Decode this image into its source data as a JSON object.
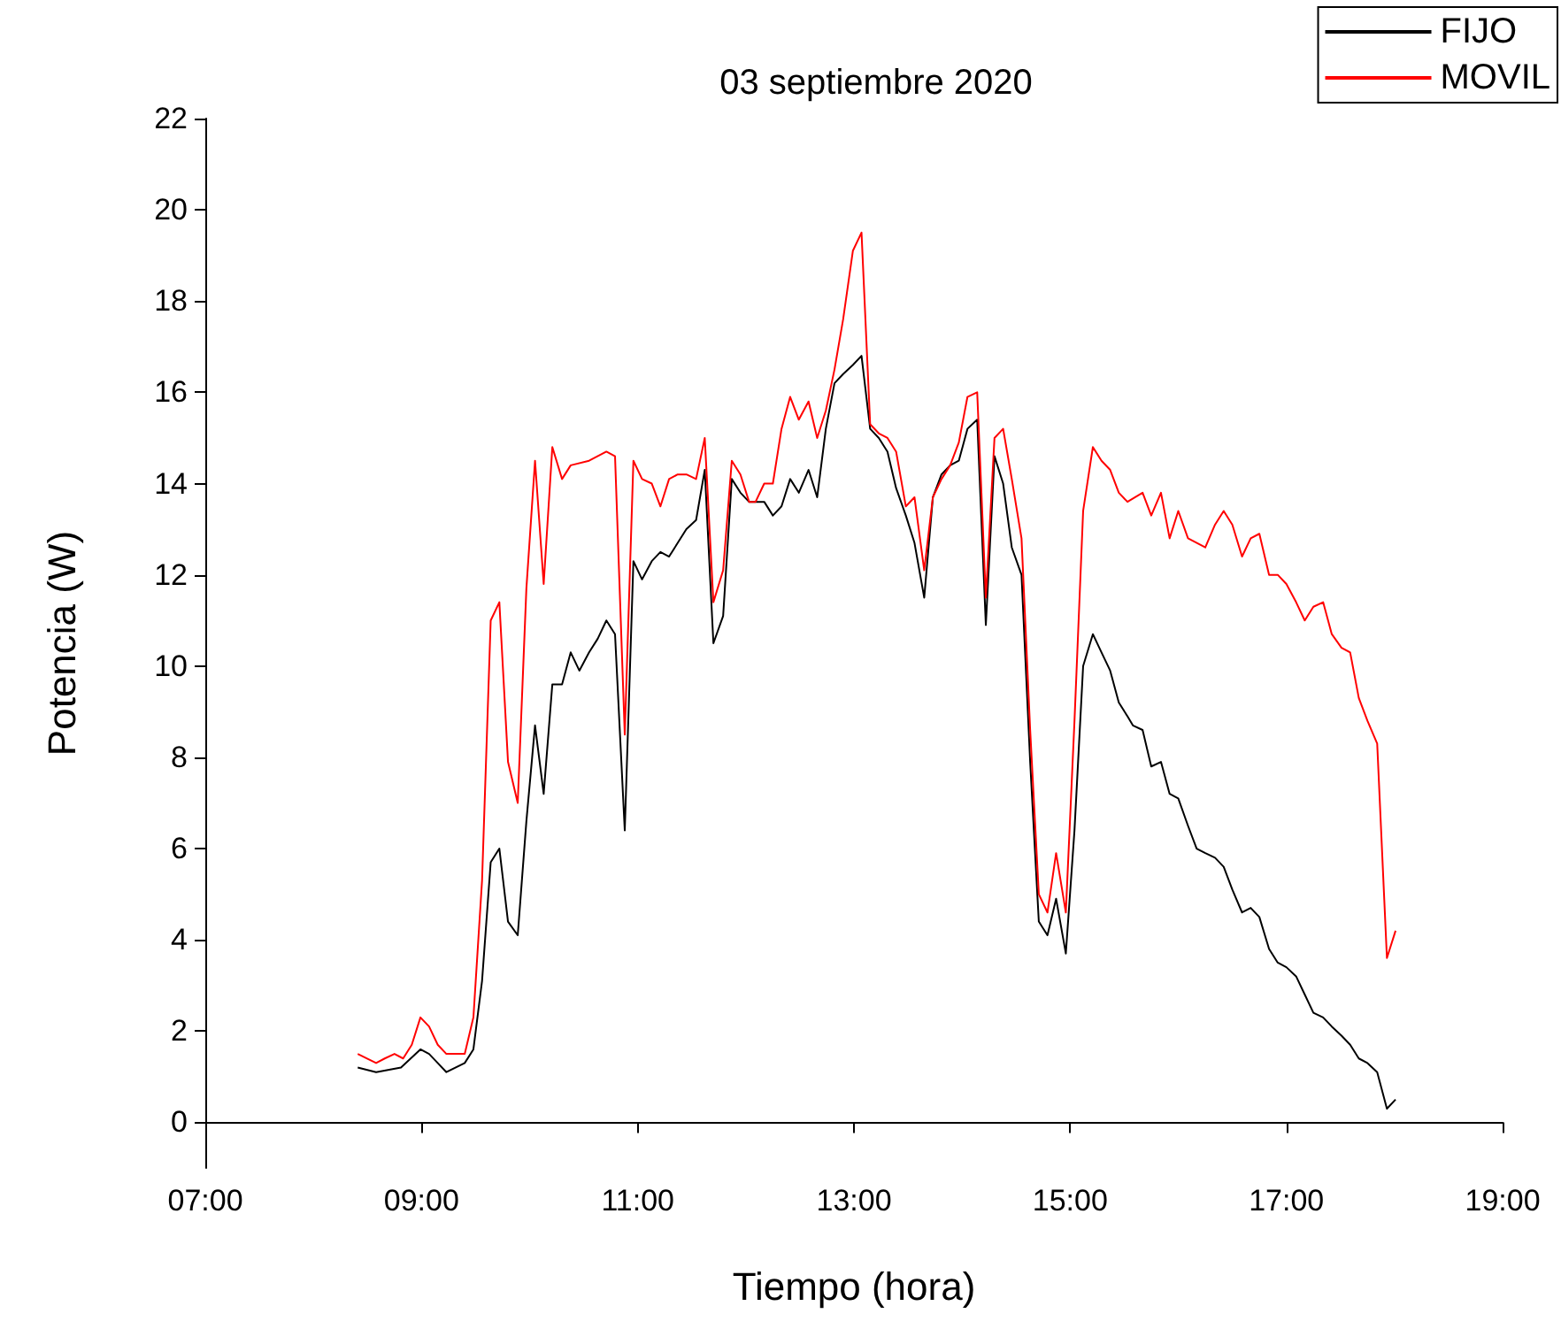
{
  "chart_data": {
    "type": "line",
    "title": "03 septiembre 2020",
    "xlabel": "Tiempo (hora)",
    "ylabel": "Potencia (W)",
    "xlim": [
      7,
      19
    ],
    "xticks": [
      {
        "value": 7,
        "label": "07:00"
      },
      {
        "value": 9,
        "label": "09:00"
      },
      {
        "value": 11,
        "label": "11:00"
      },
      {
        "value": 13,
        "label": "13:00"
      },
      {
        "value": 15,
        "label": "15:00"
      },
      {
        "value": 17,
        "label": "17:00"
      },
      {
        "value": 19,
        "label": "19:00"
      }
    ],
    "ylim": [
      -1,
      22
    ],
    "yticks": [
      0,
      2,
      4,
      6,
      8,
      10,
      12,
      14,
      16,
      18,
      20,
      22
    ],
    "grid": false,
    "legend": "top right",
    "marker": "none",
    "line_style": "solid",
    "series": [
      {
        "name": "FIJO",
        "color": "#000000",
        "x": [
          8.41,
          8.58,
          8.81,
          8.9,
          8.99,
          9.07,
          9.15,
          9.23,
          9.4,
          9.48,
          9.56,
          9.64,
          9.72,
          9.8,
          9.89,
          9.97,
          10.05,
          10.13,
          10.21,
          10.3,
          10.38,
          10.46,
          10.55,
          10.63,
          10.71,
          10.79,
          10.88,
          10.96,
          11.04,
          11.13,
          11.21,
          11.29,
          11.37,
          11.45,
          11.54,
          11.62,
          11.7,
          11.79,
          11.87,
          11.95,
          12.03,
          12.09,
          12.17,
          12.25,
          12.33,
          12.41,
          12.49,
          12.58,
          12.66,
          12.74,
          12.82,
          12.9,
          12.99,
          13.07,
          13.15,
          13.23,
          13.31,
          13.39,
          13.48,
          13.56,
          13.65,
          13.73,
          13.81,
          13.89,
          13.97,
          14.05,
          14.14,
          14.22,
          14.3,
          14.38,
          14.46,
          14.55,
          14.63,
          14.71,
          14.79,
          14.87,
          14.96,
          15.04,
          15.12,
          15.21,
          15.29,
          15.37,
          15.45,
          15.53,
          15.58,
          15.67,
          15.75,
          15.84,
          15.92,
          16.0,
          16.09,
          16.17,
          16.25,
          16.34,
          16.42,
          16.5,
          16.59,
          16.67,
          16.75,
          16.84,
          16.92,
          17.0,
          17.09,
          17.17,
          17.25,
          17.34,
          17.42,
          17.51,
          17.59,
          17.67,
          17.75,
          17.84,
          17.93,
          18.01
        ],
        "values": [
          1.2,
          1.1,
          1.2,
          1.4,
          1.6,
          1.5,
          1.3,
          1.1,
          1.3,
          1.6,
          3.1,
          5.7,
          6.0,
          4.4,
          4.1,
          6.6,
          8.7,
          7.2,
          9.6,
          9.6,
          10.3,
          9.9,
          10.3,
          10.6,
          11.0,
          10.7,
          6.4,
          12.3,
          11.9,
          12.3,
          12.5,
          12.4,
          12.7,
          13.0,
          13.2,
          14.3,
          10.5,
          11.1,
          14.1,
          13.8,
          13.6,
          13.6,
          13.6,
          13.3,
          13.5,
          14.1,
          13.8,
          14.3,
          13.7,
          15.2,
          16.2,
          16.4,
          16.6,
          16.8,
          15.2,
          15.0,
          14.7,
          13.9,
          13.3,
          12.7,
          11.5,
          13.7,
          14.2,
          14.4,
          14.5,
          15.2,
          15.4,
          10.9,
          14.6,
          14.0,
          12.6,
          12.0,
          7.9,
          4.4,
          4.1,
          4.9,
          3.7,
          6.4,
          10.0,
          10.7,
          10.3,
          9.9,
          9.2,
          8.9,
          8.7,
          8.6,
          7.8,
          7.9,
          7.2,
          7.1,
          6.5,
          6.0,
          5.9,
          5.8,
          5.6,
          5.1,
          4.6,
          4.7,
          4.5,
          3.8,
          3.5,
          3.4,
          3.2,
          2.8,
          2.4,
          2.3,
          2.1,
          1.9,
          1.7,
          1.4,
          1.3,
          1.1,
          0.3,
          0.5
        ]
      },
      {
        "name": "MOVIL",
        "color": "#ff0000",
        "x": [
          8.41,
          8.58,
          8.66,
          8.75,
          8.83,
          8.91,
          8.99,
          9.07,
          9.15,
          9.23,
          9.32,
          9.4,
          9.48,
          9.56,
          9.64,
          9.72,
          9.8,
          9.89,
          9.97,
          10.05,
          10.13,
          10.21,
          10.3,
          10.38,
          10.55,
          10.71,
          10.79,
          10.88,
          10.96,
          11.04,
          11.13,
          11.21,
          11.29,
          11.37,
          11.45,
          11.54,
          11.62,
          11.7,
          11.79,
          11.87,
          11.95,
          12.03,
          12.09,
          12.17,
          12.25,
          12.33,
          12.41,
          12.49,
          12.58,
          12.66,
          12.74,
          12.82,
          12.9,
          12.99,
          13.07,
          13.15,
          13.23,
          13.31,
          13.39,
          13.48,
          13.56,
          13.65,
          13.73,
          13.81,
          13.89,
          13.97,
          14.05,
          14.14,
          14.22,
          14.3,
          14.38,
          14.46,
          14.55,
          14.63,
          14.71,
          14.79,
          14.87,
          14.96,
          15.04,
          15.12,
          15.21,
          15.29,
          15.37,
          15.45,
          15.53,
          15.67,
          15.75,
          15.84,
          15.92,
          16.0,
          16.09,
          16.25,
          16.34,
          16.42,
          16.5,
          16.59,
          16.67,
          16.75,
          16.84,
          16.92,
          17.0,
          17.09,
          17.17,
          17.25,
          17.34,
          17.42,
          17.51,
          17.59,
          17.67,
          17.75,
          17.84,
          17.93,
          18.01
        ],
        "values": [
          1.5,
          1.3,
          1.4,
          1.5,
          1.4,
          1.7,
          2.3,
          2.1,
          1.7,
          1.5,
          1.5,
          1.5,
          2.3,
          5.3,
          11.0,
          11.4,
          7.9,
          7.0,
          11.7,
          14.5,
          11.8,
          14.8,
          14.1,
          14.4,
          14.5,
          14.7,
          14.6,
          8.5,
          14.5,
          14.1,
          14.0,
          13.5,
          14.1,
          14.2,
          14.2,
          14.1,
          15.0,
          11.4,
          12.1,
          14.5,
          14.2,
          13.6,
          13.6,
          14.0,
          14.0,
          15.2,
          15.9,
          15.4,
          15.8,
          15.0,
          15.6,
          16.5,
          17.6,
          19.1,
          19.5,
          15.3,
          15.1,
          15.0,
          14.7,
          13.5,
          13.7,
          12.1,
          13.7,
          14.1,
          14.4,
          14.9,
          15.9,
          16.0,
          11.5,
          15.0,
          15.2,
          14.1,
          12.8,
          8.6,
          5.0,
          4.6,
          5.9,
          4.6,
          8.8,
          13.4,
          14.8,
          14.5,
          14.3,
          13.8,
          13.6,
          13.8,
          13.3,
          13.8,
          12.8,
          13.4,
          12.8,
          12.6,
          13.1,
          13.4,
          13.1,
          12.4,
          12.8,
          12.9,
          12.0,
          12.0,
          11.8,
          11.4,
          11.0,
          11.3,
          11.4,
          10.7,
          10.4,
          10.3,
          9.3,
          8.8,
          8.3,
          3.6,
          4.2
        ]
      }
    ]
  }
}
